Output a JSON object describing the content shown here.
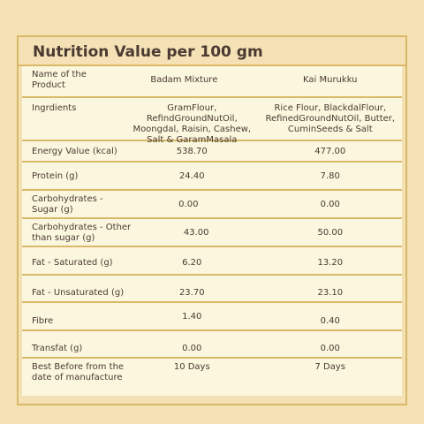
{
  "title": "Nutrition Value per 100 gm",
  "header": {
    "label": "Name of the Product",
    "col1": "Badam Mixture",
    "col2": "Kai Murukku"
  },
  "rows": [
    {
      "label": "Ingrdients",
      "col1": "GramFlour, RefindGroundNutOil, Moongdal, Raisin, Cashew, Salt & GaramMasala",
      "col2": "Rice Flour, BlackdalFlour, RefinedGroundNutOil, Butter, CuminSeeds & Salt"
    },
    {
      "label": "Energy Value (kcal)",
      "col1": "538.70",
      "col2": "477.00"
    },
    {
      "label": "Protein (g)",
      "col1": "24.40",
      "col2": "7.80"
    },
    {
      "label": "Carbohydrates - Sugar (g)",
      "col1": "0.00",
      "col2": "0.00"
    },
    {
      "label": "Carbohydrates - Other than sugar (g)",
      "col1": "43.00",
      "col2": "50.00"
    },
    {
      "label": "Fat - Saturated (g)",
      "col1": "6.20",
      "col2": "13.20"
    },
    {
      "label": "Fat - Unsaturated (g)",
      "col1": "23.70",
      "col2": "23.10"
    },
    {
      "label": "Fibre",
      "col1": "1.40",
      "col2": "0.40"
    },
    {
      "label": "Transfat (g)",
      "col1": "0.00",
      "col2": "0.00"
    },
    {
      "label": "Best Before from the date of manufacture",
      "col1": "10 Days",
      "col2": "7 Days"
    }
  ]
}
